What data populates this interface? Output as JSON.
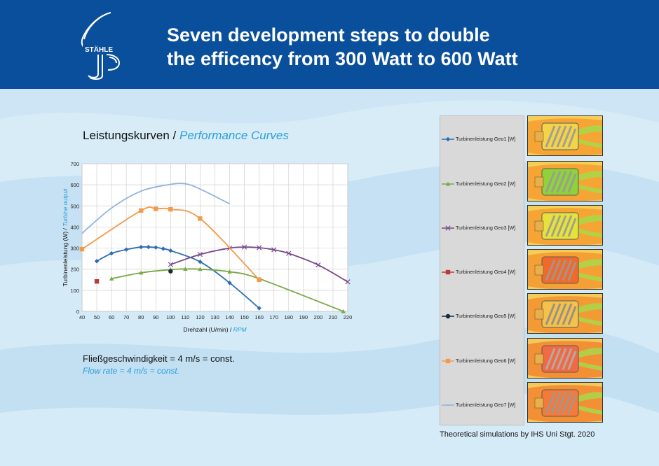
{
  "header": {
    "title_line1": "Seven development steps to double",
    "title_line2": "the efficency from 300 Watt to 600 Watt",
    "logo_text": "STÄHLE"
  },
  "chart_heading": {
    "de": "Leistungskurven",
    "sep": " / ",
    "en": "Performance Curves"
  },
  "flow": {
    "de": "Fließgeschwindigkeit = 4 m/s = const.",
    "en": "Flow rate = 4 m/s = const."
  },
  "caption": "Theoretical simulations by IHS Uni Stgt. 2020",
  "colors": {
    "header": "#0a4f9c",
    "accent": "#2a9fd8"
  },
  "chart_data": {
    "type": "line",
    "xlabel_de": "Drehzahl (U/min)",
    "xlabel_sep": " / ",
    "xlabel_en": "RPM",
    "ylabel_de": "Turbinenleistung (W)",
    "ylabel_sep": " / ",
    "ylabel_en": "Turbine output",
    "xlim": [
      40,
      220
    ],
    "ylim": [
      0,
      700
    ],
    "xticks": [
      40,
      50,
      60,
      70,
      80,
      90,
      100,
      110,
      120,
      130,
      140,
      150,
      160,
      170,
      180,
      190,
      200,
      210,
      220
    ],
    "yticks": [
      0,
      100,
      200,
      300,
      400,
      500,
      600,
      700
    ],
    "grid": true,
    "legend": "right",
    "series": [
      {
        "name": "Turbinenleistung Geo1 [W]",
        "color": "#2e6db4",
        "marker": "diamond",
        "points": [
          [
            50,
            238
          ],
          [
            60,
            275
          ],
          [
            70,
            293
          ],
          [
            80,
            305
          ],
          [
            85,
            305
          ],
          [
            90,
            303
          ],
          [
            95,
            297
          ],
          [
            100,
            288
          ],
          [
            120,
            235
          ],
          [
            140,
            135
          ],
          [
            160,
            15
          ]
        ]
      },
      {
        "name": "Turbinenleistung Geo2 [W]",
        "color": "#77a843",
        "marker": "triangle",
        "points": [
          [
            60,
            155
          ],
          [
            80,
            183
          ],
          [
            100,
            198
          ],
          [
            110,
            201
          ],
          [
            120,
            200
          ],
          [
            140,
            188
          ],
          [
            160,
            155
          ],
          [
            217,
            0
          ]
        ]
      },
      {
        "name": "Turbinenleistung Geo3 [W]",
        "color": "#7a4a8a",
        "marker": "x",
        "points": [
          [
            100,
            222
          ],
          [
            120,
            270
          ],
          [
            140,
            300
          ],
          [
            150,
            305
          ],
          [
            160,
            302
          ],
          [
            170,
            292
          ],
          [
            180,
            275
          ],
          [
            200,
            220
          ],
          [
            220,
            140
          ]
        ]
      },
      {
        "name": "Turbinenleistung Geo4 [W]",
        "color": "#b83b3b",
        "marker": "square",
        "points": [
          [
            50,
            142
          ]
        ]
      },
      {
        "name": "Turbinenleistung Geo5 [W]",
        "color": "#1a2a3a",
        "marker": "circle",
        "points": [
          [
            100,
            190
          ]
        ]
      },
      {
        "name": "Turbinenleistung Geo6 [W]",
        "color": "#f39a4b",
        "marker": "square",
        "points": [
          [
            40,
            295
          ],
          [
            80,
            478
          ],
          [
            90,
            486
          ],
          [
            100,
            484
          ],
          [
            120,
            440
          ],
          [
            160,
            150
          ]
        ]
      },
      {
        "name": "Turbinenleistung Geo7 [W]",
        "color": "#8fb3e0",
        "marker": "dash",
        "points": [
          [
            40,
            370
          ],
          [
            60,
            490
          ],
          [
            80,
            570
          ],
          [
            100,
            602
          ],
          [
            110,
            605
          ],
          [
            120,
            580
          ],
          [
            140,
            510
          ]
        ]
      }
    ]
  },
  "simulations": [
    {
      "label": "Geo1",
      "bg": "#f6a534",
      "body": "#f3d34a",
      "blade": "#9a9a9a"
    },
    {
      "label": "Geo2",
      "bg": "#f6a534",
      "body": "#8fd23a",
      "blade": "#9a9a9a"
    },
    {
      "label": "Geo3",
      "bg": "#f6a534",
      "body": "#e6e23a",
      "blade": "#9a9a9a"
    },
    {
      "label": "Geo4",
      "bg": "#f5a035",
      "body": "#f26a2a",
      "blade": "#9a9a9a"
    },
    {
      "label": "Geo5",
      "bg": "#f39a35",
      "body": "#f4c14a",
      "blade": "#8e8e8e"
    },
    {
      "label": "Geo6",
      "bg": "#f39035",
      "body": "#f06a44",
      "blade": "#b0b0b0"
    },
    {
      "label": "Geo7",
      "bg": "#f39035",
      "body": "#f47a3a",
      "blade": "#9a9a9a"
    }
  ]
}
